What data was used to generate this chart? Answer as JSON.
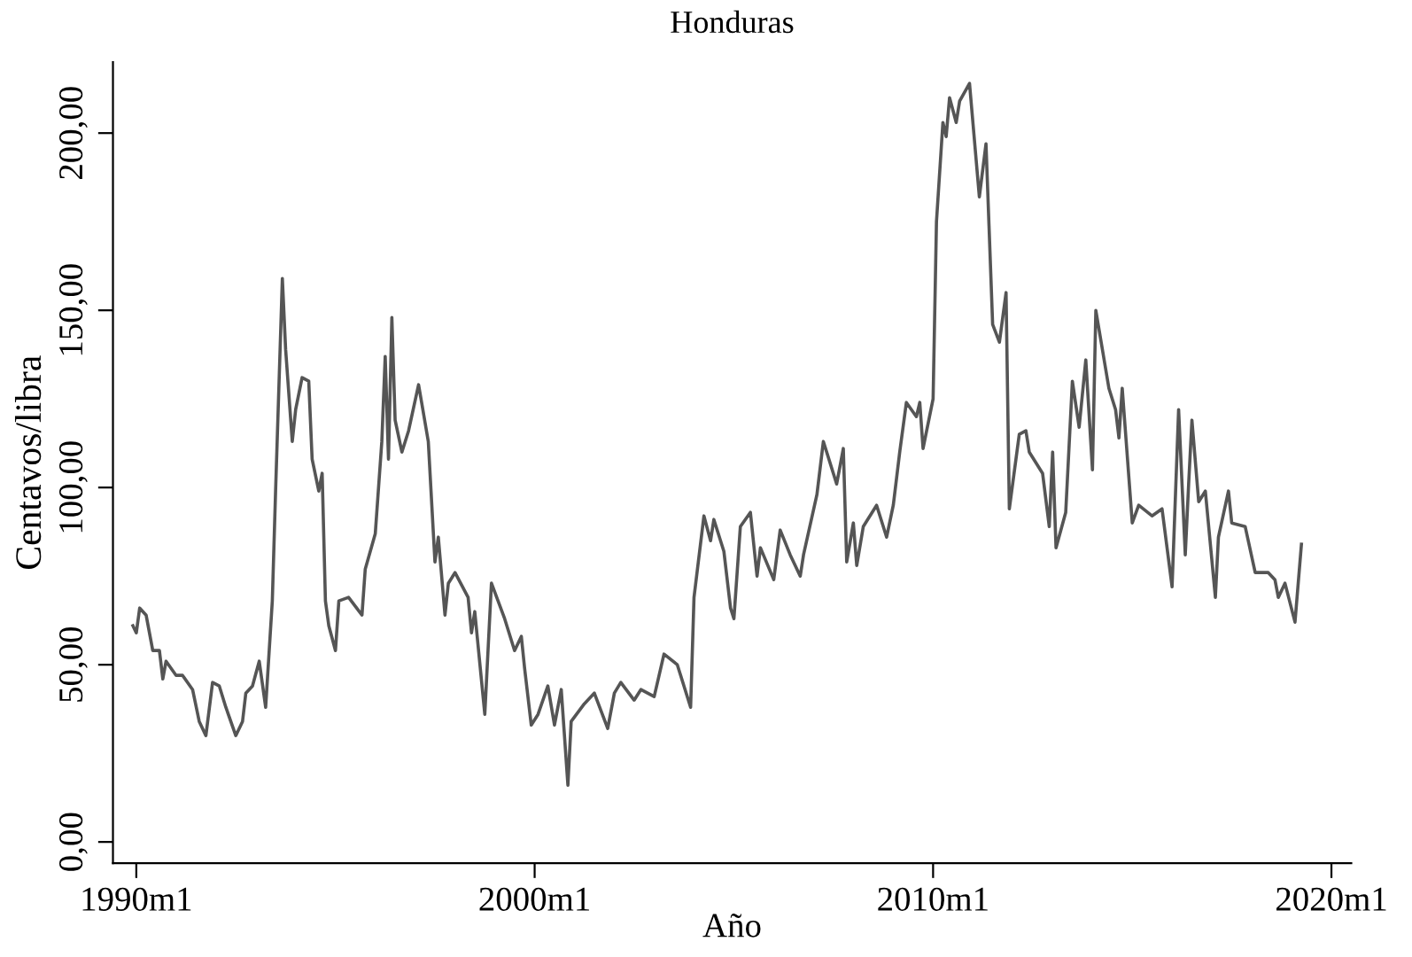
{
  "chart_data": {
    "type": "line",
    "title": "Honduras",
    "xlabel": "Año",
    "ylabel": "Centavos/libra",
    "x": [
      "1989-12",
      "1990-01",
      "1990-02",
      "1990-04",
      "1990-06",
      "1990-08",
      "1990-09",
      "1990-10",
      "1991-01",
      "1991-03",
      "1991-06",
      "1991-08",
      "1991-10",
      "1991-12",
      "1992-02",
      "1992-04",
      "1992-07",
      "1992-09",
      "1992-10",
      "1992-12",
      "1993-02",
      "1993-04",
      "1993-06",
      "1993-07",
      "1993-09",
      "1993-10",
      "1993-12",
      "1994-01",
      "1994-03",
      "1994-05",
      "1994-06",
      "1994-08",
      "1994-09",
      "1994-10",
      "1994-11",
      "1995-01",
      "1995-02",
      "1995-05",
      "1995-09",
      "1995-10",
      "1996-01",
      "1996-03",
      "1996-04",
      "1996-05",
      "1996-06",
      "1996-07",
      "1996-09",
      "1996-11",
      "1997-02",
      "1997-03",
      "1997-05",
      "1997-07",
      "1997-08",
      "1997-10",
      "1997-11",
      "1998-01",
      "1998-05",
      "1998-06",
      "1998-07",
      "1998-10",
      "1998-12",
      "1999-04",
      "1999-07",
      "1999-09",
      "1999-10",
      "1999-12",
      "2000-02",
      "2000-05",
      "2000-07",
      "2000-09",
      "2000-11",
      "2000-12",
      "2001-04",
      "2001-07",
      "2001-11",
      "2002-01",
      "2002-03",
      "2002-07",
      "2002-09",
      "2003-01",
      "2003-04",
      "2003-08",
      "2003-12",
      "2004-01",
      "2004-04",
      "2004-06",
      "2004-07",
      "2004-10",
      "2004-12",
      "2005-01",
      "2005-03",
      "2005-06",
      "2005-08",
      "2005-09",
      "2006-01",
      "2006-03",
      "2006-06",
      "2006-09",
      "2006-10",
      "2007-02",
      "2007-04",
      "2007-08",
      "2007-10",
      "2007-11",
      "2008-01",
      "2008-02",
      "2008-04",
      "2008-08",
      "2008-11",
      "2009-01",
      "2009-03",
      "2009-05",
      "2009-08",
      "2009-09",
      "2009-10",
      "2010-01",
      "2010-02",
      "2010-04",
      "2010-05",
      "2010-06",
      "2010-08",
      "2010-09",
      "2010-12",
      "2011-03",
      "2011-05",
      "2011-07",
      "2011-09",
      "2011-11",
      "2011-12",
      "2012-03",
      "2012-05",
      "2012-06",
      "2012-10",
      "2012-12",
      "2013-01",
      "2013-02",
      "2013-05",
      "2013-07",
      "2013-09",
      "2013-11",
      "2014-01",
      "2014-02",
      "2014-06",
      "2014-08",
      "2014-09",
      "2014-10",
      "2015-01",
      "2015-03",
      "2015-07",
      "2015-10",
      "2016-01",
      "2016-03",
      "2016-05",
      "2016-06",
      "2016-07",
      "2016-09",
      "2016-11",
      "2017-02",
      "2017-03",
      "2017-06",
      "2017-07",
      "2017-11",
      "2018-02",
      "2018-06",
      "2018-08",
      "2018-09",
      "2018-11",
      "2019-02",
      "2019-04"
    ],
    "series": [
      {
        "color": "#555555",
        "values": [
          61,
          59,
          66,
          64,
          54,
          54,
          46,
          51,
          47,
          47,
          43,
          34,
          30,
          45,
          44,
          38,
          30,
          34,
          42,
          44,
          51,
          38,
          68,
          99,
          159,
          139,
          113,
          122,
          131,
          130,
          108,
          99,
          104,
          68,
          61,
          54,
          68,
          69,
          64,
          77,
          87,
          113,
          137,
          108,
          148,
          119,
          110,
          116,
          129,
          124,
          113,
          79,
          86,
          64,
          73,
          76,
          69,
          59,
          65,
          36,
          73,
          63,
          54,
          58,
          49,
          33,
          36,
          44,
          33,
          43,
          16,
          34,
          39,
          42,
          32,
          42,
          45,
          40,
          43,
          41,
          53,
          50,
          38,
          69,
          92,
          85,
          91,
          82,
          66,
          63,
          89,
          93,
          75,
          83,
          74,
          88,
          81,
          75,
          81,
          98,
          113,
          101,
          111,
          79,
          90,
          78,
          89,
          95,
          86,
          95,
          110,
          124,
          120,
          124,
          111,
          125,
          175,
          203,
          199,
          210,
          203,
          209,
          214,
          182,
          197,
          146,
          141,
          155,
          94,
          115,
          116,
          110,
          104,
          89,
          110,
          83,
          93,
          130,
          117,
          136,
          105,
          150,
          128,
          122,
          114,
          128,
          90,
          95,
          92,
          94,
          72,
          122,
          81,
          101,
          119,
          96,
          99,
          69,
          86,
          99,
          90,
          89,
          76,
          76,
          74,
          69,
          73,
          62,
          84
        ]
      }
    ],
    "xlim": [
      "1989-06",
      "2020-07"
    ],
    "xticks": [
      {
        "value": "1990-01",
        "label": "1990m1"
      },
      {
        "value": "2000-01",
        "label": "2000m1"
      },
      {
        "value": "2010-01",
        "label": "2010m1"
      },
      {
        "value": "2020-01",
        "label": "2020m1"
      }
    ],
    "ylim": [
      -6,
      220
    ],
    "yticks": [
      {
        "value": 0,
        "label": "0,00"
      },
      {
        "value": 50,
        "label": "50,00"
      },
      {
        "value": 100,
        "label": "100,00"
      },
      {
        "value": 150,
        "label": "150,00"
      },
      {
        "value": 200,
        "label": "200,00"
      }
    ],
    "marker": "none",
    "line_style": "solid"
  }
}
